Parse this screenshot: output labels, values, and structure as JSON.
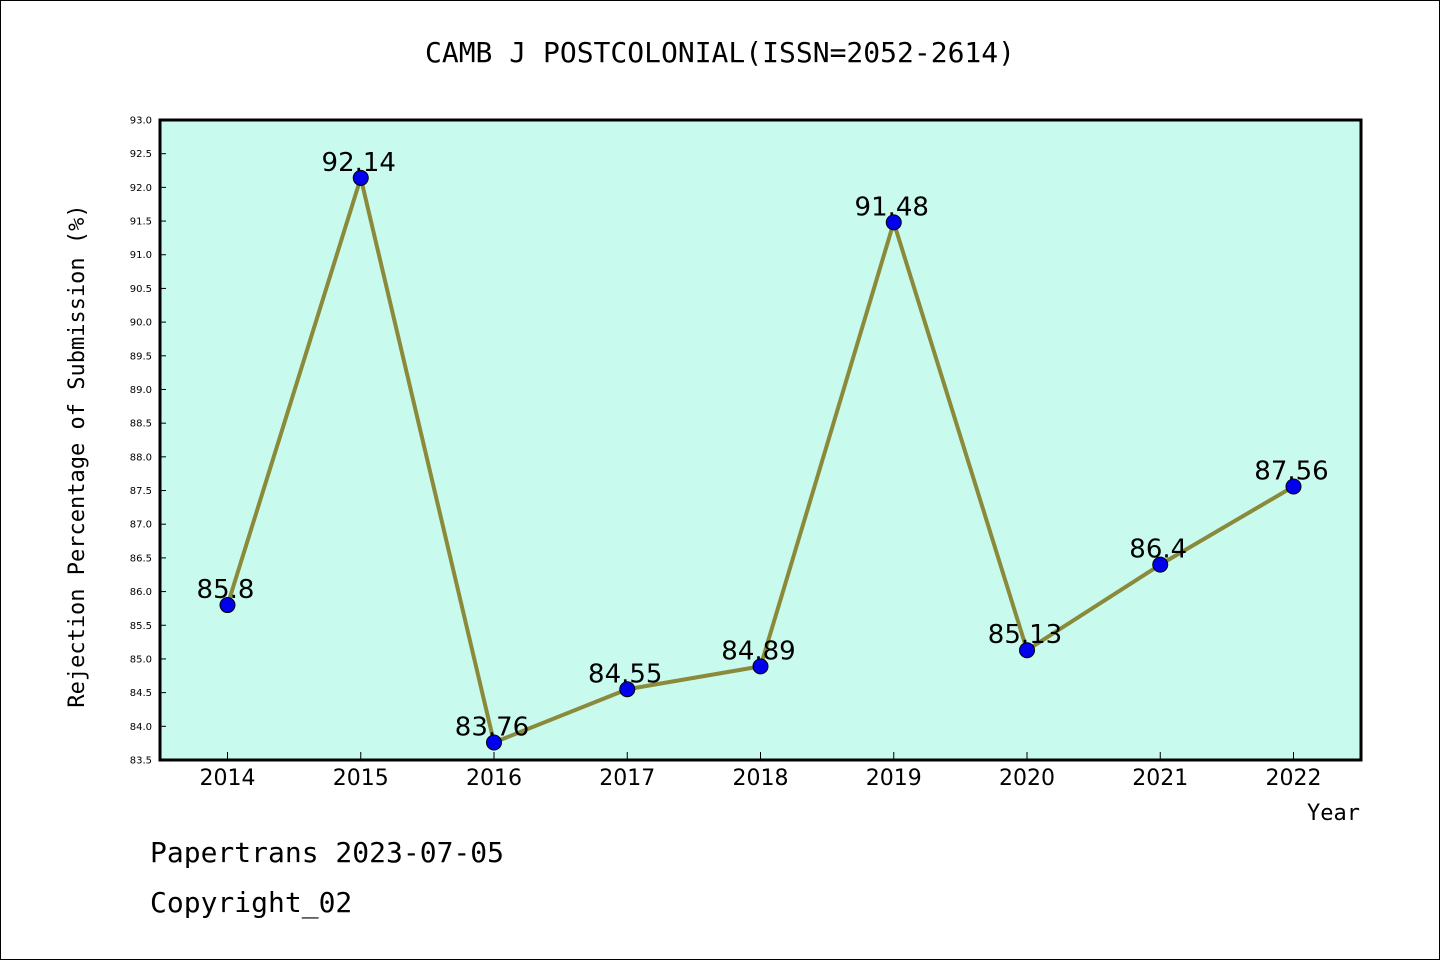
{
  "chart_data": {
    "type": "line",
    "title": "CAMB J POSTCOLONIAL(ISSN=2052-2614)",
    "xlabel": "Year",
    "ylabel": "Rejection Percentage of Submission (%)",
    "categories": [
      "2014",
      "2015",
      "2016",
      "2017",
      "2018",
      "2019",
      "2020",
      "2021",
      "2022"
    ],
    "values": [
      85.8,
      92.14,
      83.76,
      84.55,
      84.89,
      91.48,
      85.13,
      86.4,
      87.56
    ],
    "data_labels": [
      "85.8",
      "92.14",
      "83.76",
      "84.55",
      "84.89",
      "91.48",
      "85.13",
      "86.4",
      "87.56"
    ],
    "ylim": [
      83.5,
      93.0
    ],
    "ytick_step": 0.5,
    "grid": false,
    "colors": {
      "plot_background": "#c8fbee",
      "line": "#8b8a3a",
      "marker": "#0000ee"
    }
  },
  "footer": {
    "line1": "Papertrans 2023-07-05",
    "line2": "Copyright_02"
  }
}
